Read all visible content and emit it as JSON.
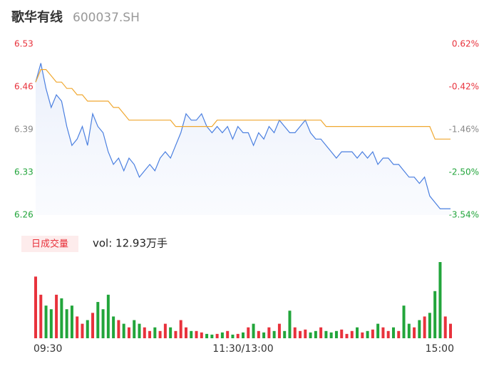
{
  "header": {
    "title": "歌华有线",
    "code": "600037.SH"
  },
  "volume_button": "日成交量",
  "volume_label": "vol: 12.93万手",
  "chart_data": {
    "type": "line",
    "x": [
      0,
      3,
      6,
      9,
      12,
      15,
      18,
      21,
      24,
      27,
      30,
      33,
      36,
      39,
      42,
      45,
      48,
      51,
      54,
      57,
      60,
      63,
      66,
      69,
      72,
      75,
      78,
      81,
      84,
      87,
      90,
      93,
      96,
      99,
      102,
      105,
      108,
      111,
      114,
      117,
      120,
      123,
      126,
      129,
      132,
      135,
      138,
      141,
      144,
      147,
      150,
      153,
      156,
      159,
      162,
      165,
      168,
      171,
      174,
      177,
      180,
      183,
      186,
      189,
      192,
      195,
      198,
      201,
      204,
      207,
      210,
      213,
      216,
      219,
      222,
      225,
      228,
      231,
      234,
      237,
      240
    ],
    "xlim": [
      0,
      240
    ],
    "xticks": [
      {
        "value": 0,
        "label": "09:30"
      },
      {
        "value": 120,
        "label": "11:30/13:00"
      },
      {
        "value": 240,
        "label": "15:00"
      }
    ],
    "ylim": [
      6.26,
      6.53
    ],
    "yticks": [
      6.26,
      {
        "value": 6.3275,
        "label": "6.33"
      },
      {
        "value": 6.395,
        "label": "6.39"
      },
      {
        "value": 6.4625,
        "label": "6.46"
      },
      6.53
    ],
    "y2lim": [
      -3.54,
      0.62
    ],
    "y2ticks": [
      {
        "value": -3.54,
        "label": "-3.54%"
      },
      {
        "value": -2.5,
        "label": "-2.50%"
      },
      {
        "value": -1.46,
        "label": "-1.46%"
      },
      {
        "value": -0.42,
        "label": "-0.42%"
      },
      {
        "value": 0.62,
        "label": "0.62%"
      }
    ],
    "series": [
      {
        "color": "#4a7fe0",
        "values": [
          6.47,
          6.5,
          6.46,
          6.43,
          6.45,
          6.44,
          6.4,
          6.37,
          6.38,
          6.4,
          6.37,
          6.42,
          6.4,
          6.39,
          6.36,
          6.34,
          6.35,
          6.33,
          6.35,
          6.34,
          6.32,
          6.33,
          6.34,
          6.33,
          6.35,
          6.36,
          6.35,
          6.37,
          6.39,
          6.42,
          6.41,
          6.41,
          6.42,
          6.4,
          6.39,
          6.4,
          6.39,
          6.4,
          6.38,
          6.4,
          6.39,
          6.39,
          6.37,
          6.39,
          6.38,
          6.4,
          6.39,
          6.41,
          6.4,
          6.39,
          6.39,
          6.4,
          6.41,
          6.39,
          6.38,
          6.38,
          6.37,
          6.36,
          6.35,
          6.36,
          6.36,
          6.36,
          6.35,
          6.36,
          6.35,
          6.36,
          6.34,
          6.35,
          6.35,
          6.34,
          6.34,
          6.33,
          6.32,
          6.32,
          6.31,
          6.32,
          6.29,
          6.28,
          6.27,
          6.27,
          6.27
        ]
      },
      {
        "color": "#f0a830",
        "values": [
          6.47,
          6.49,
          6.49,
          6.48,
          6.47,
          6.47,
          6.46,
          6.46,
          6.45,
          6.45,
          6.44,
          6.44,
          6.44,
          6.44,
          6.44,
          6.43,
          6.43,
          6.42,
          6.41,
          6.41,
          6.41,
          6.41,
          6.41,
          6.41,
          6.41,
          6.41,
          6.41,
          6.4,
          6.4,
          6.4,
          6.4,
          6.4,
          6.4,
          6.4,
          6.4,
          6.41,
          6.41,
          6.41,
          6.41,
          6.41,
          6.41,
          6.41,
          6.41,
          6.41,
          6.41,
          6.41,
          6.41,
          6.41,
          6.41,
          6.41,
          6.41,
          6.41,
          6.41,
          6.41,
          6.41,
          6.41,
          6.4,
          6.4,
          6.4,
          6.4,
          6.4,
          6.4,
          6.4,
          6.4,
          6.4,
          6.4,
          6.4,
          6.4,
          6.4,
          6.4,
          6.4,
          6.4,
          6.4,
          6.4,
          6.4,
          6.4,
          6.4,
          6.38,
          6.38,
          6.38,
          6.38
        ]
      },
      {
        "type": "bar",
        "up_color": "#e8323c",
        "down_color": "#22a53b",
        "values": [
          850,
          600,
          450,
          400,
          600,
          550,
          400,
          450,
          300,
          200,
          250,
          350,
          500,
          400,
          600,
          300,
          250,
          200,
          150,
          250,
          200,
          150,
          100,
          150,
          100,
          200,
          150,
          100,
          250,
          150,
          100,
          100,
          80,
          60,
          50,
          60,
          80,
          100,
          50,
          60,
          80,
          150,
          200,
          100,
          80,
          150,
          100,
          200,
          100,
          380,
          150,
          100,
          120,
          80,
          100,
          150,
          100,
          80,
          100,
          120,
          60,
          100,
          150,
          80,
          100,
          120,
          200,
          150,
          100,
          150,
          100,
          450,
          200,
          150,
          250,
          300,
          350,
          650,
          1050,
          300,
          200
        ]
      }
    ]
  }
}
